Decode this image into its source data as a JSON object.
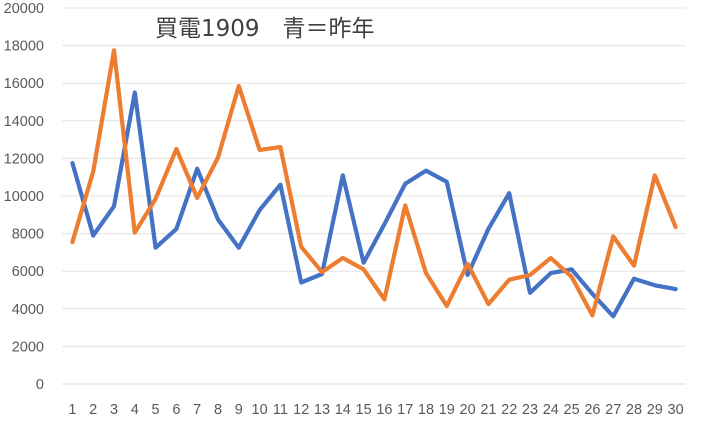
{
  "chart_data": {
    "type": "line",
    "title": "買電1909　青＝昨年",
    "xlabel": "",
    "ylabel": "",
    "categories": [
      "1",
      "2",
      "3",
      "4",
      "5",
      "6",
      "7",
      "8",
      "9",
      "10",
      "11",
      "12",
      "13",
      "14",
      "15",
      "16",
      "17",
      "18",
      "19",
      "20",
      "21",
      "22",
      "23",
      "24",
      "25",
      "26",
      "27",
      "28",
      "29",
      "30"
    ],
    "ylim": [
      0,
      20000
    ],
    "yticks": [
      0,
      2000,
      4000,
      6000,
      8000,
      10000,
      12000,
      14000,
      16000,
      18000,
      20000
    ],
    "grid": true,
    "legend": "none",
    "series": [
      {
        "color": "#4472C4",
        "values": [
          11750,
          7900,
          9450,
          15500,
          7250,
          8250,
          11450,
          8750,
          7250,
          9250,
          10600,
          5400,
          5850,
          11100,
          6450,
          8500,
          10650,
          11350,
          10750,
          5800,
          8250,
          10150,
          4850,
          5900,
          6100,
          4800,
          3600,
          5600,
          5250,
          5050
        ]
      },
      {
        "color": "#ED7D31",
        "values": [
          7550,
          11300,
          17750,
          8050,
          9850,
          12500,
          9900,
          12050,
          15850,
          12450,
          12600,
          7300,
          5950,
          6700,
          6100,
          4500,
          9500,
          5900,
          4150,
          6400,
          4250,
          5550,
          5800,
          6700,
          5700,
          3650,
          7850,
          6300,
          11100,
          8350
        ]
      }
    ]
  }
}
